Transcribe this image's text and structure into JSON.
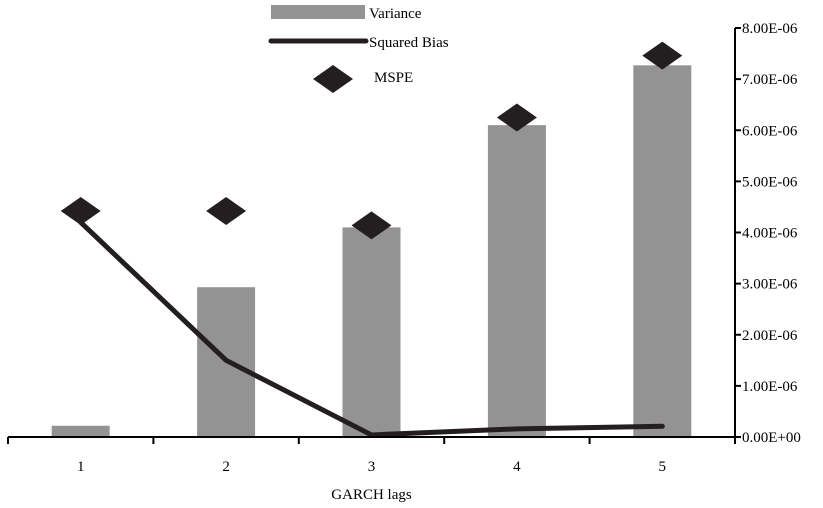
{
  "chart_data": {
    "type": "bar",
    "xlabel": "GARCH lags",
    "ylabel": "",
    "categories": [
      "1",
      "2",
      "3",
      "4",
      "5"
    ],
    "ylim": [
      0,
      8e-06
    ],
    "y_ticks": [
      "0.00E+00",
      "1.00E-06",
      "2.00E-06",
      "3.00E-06",
      "4.00E-06",
      "5.00E-06",
      "6.00E-06",
      "7.00E-06",
      "8.00E-06"
    ],
    "y_axis_side": "right",
    "legend_position": "top-center",
    "series": [
      {
        "name": "Variance",
        "kind": "bar",
        "color": "#939393",
        "values": [
          2.2e-07,
          2.93e-06,
          4.1e-06,
          6.1e-06,
          7.27e-06
        ]
      },
      {
        "name": "Squared Bias",
        "kind": "line",
        "color": "#231f20",
        "values": [
          4.2e-06,
          1.5e-06,
          4e-08,
          1.6e-07,
          2.1e-07
        ]
      },
      {
        "name": "MSPE",
        "kind": "marker",
        "marker": "diamond",
        "color": "#231f20",
        "values": [
          4.42e-06,
          4.42e-06,
          4.14e-06,
          6.25e-06,
          7.46e-06
        ]
      }
    ]
  }
}
